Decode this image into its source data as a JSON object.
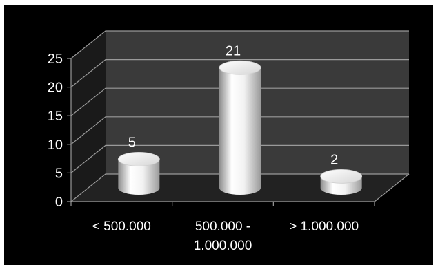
{
  "chart_data": {
    "type": "bar",
    "title": "",
    "xlabel": "",
    "ylabel": "",
    "categories": [
      [
        "< 500.000"
      ],
      [
        "500.000 -",
        "1.000.000"
      ],
      [
        "> 1.000.000"
      ]
    ],
    "values": [
      5,
      21,
      2
    ],
    "data_labels": [
      "5",
      "21",
      "2"
    ],
    "ylim": [
      0,
      25
    ],
    "yticks": [
      "0",
      "5",
      "10",
      "15",
      "20",
      "25"
    ],
    "grid": true,
    "legend": "none",
    "style": "3d-cylinder",
    "colors": {
      "background": "#000000",
      "wall": "#3a3a3a",
      "floor": "#222222",
      "gridline": "#9a9a9a",
      "bar": "#ffffff",
      "text": "#ffffff"
    }
  }
}
